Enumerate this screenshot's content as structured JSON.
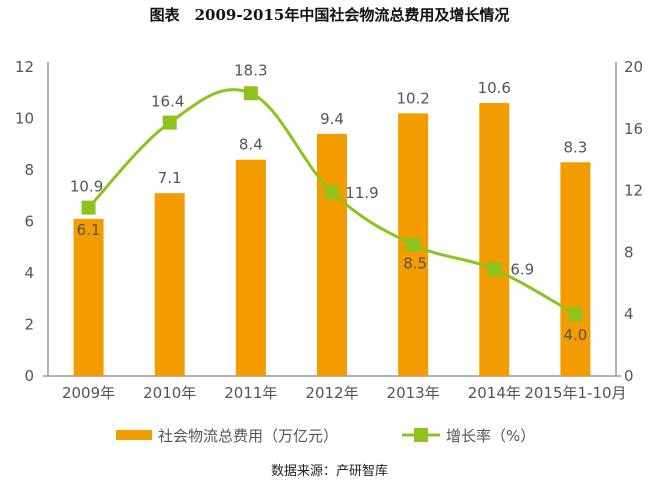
{
  "title": "图表　2009-2015年中国社会物流总费用及增长情况",
  "source": "数据来源：产研智库",
  "chart_data": {
    "type": "bar+line",
    "categories": [
      "2009年",
      "2010年",
      "2011年",
      "2012年",
      "2013年",
      "2014年",
      "2015年1-10月"
    ],
    "series": [
      {
        "name": "社会物流总费用（万亿元）",
        "type": "bar",
        "axis": "left",
        "color": "#f39c00",
        "values": [
          6.1,
          7.1,
          8.4,
          9.4,
          10.2,
          10.6,
          8.3
        ],
        "labels": [
          "6.1",
          "7.1",
          "8.4",
          "9.4",
          "10.2",
          "10.6",
          "8.3"
        ]
      },
      {
        "name": "增长率（%）",
        "type": "line",
        "axis": "right",
        "color": "#8dc21f",
        "values": [
          10.9,
          16.4,
          18.3,
          11.9,
          8.5,
          6.9,
          4.0
        ],
        "labels": [
          "10.9",
          "16.4",
          "18.3",
          "11.9",
          "8.5",
          "6.9",
          "4.0"
        ]
      }
    ],
    "left_axis": {
      "ylim": [
        0,
        12
      ],
      "ticks": [
        "0",
        "2",
        "4",
        "6",
        "8",
        "10",
        "12"
      ]
    },
    "right_axis": {
      "ylim": [
        0,
        20
      ],
      "ticks": [
        "0",
        "4",
        "8",
        "12",
        "16",
        "20"
      ]
    },
    "grid": false,
    "legend": "bottom"
  }
}
